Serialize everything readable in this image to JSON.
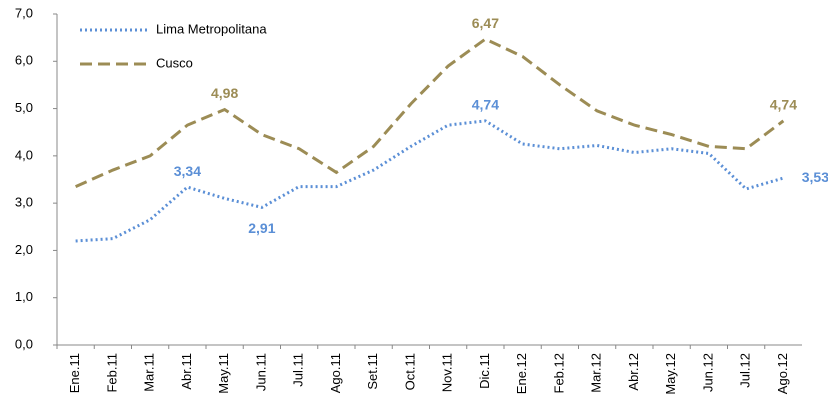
{
  "chart_data": {
    "type": "line",
    "categories": [
      "Ene.11",
      "Feb.11",
      "Mar.11",
      "Abr.11",
      "May.11",
      "Jun.11",
      "Jul.11",
      "Ago.11",
      "Set.11",
      "Oct.11",
      "Nov.11",
      "Dic.11",
      "Ene.12",
      "Feb.12",
      "Mar.12",
      "Abr.12",
      "May.12",
      "Jun.12",
      "Jul.12",
      "Ago.12"
    ],
    "series": [
      {
        "name": "Lima Metropolitana",
        "color": "#5b8fd6",
        "dash": "dotted",
        "values": [
          2.2,
          2.25,
          2.65,
          3.34,
          3.1,
          2.91,
          3.35,
          3.35,
          3.7,
          4.2,
          4.65,
          4.74,
          4.25,
          4.15,
          4.22,
          4.07,
          4.15,
          4.05,
          3.3,
          3.53
        ],
        "value_labels": [
          null,
          null,
          null,
          "3,34",
          null,
          "2,91",
          null,
          null,
          null,
          null,
          null,
          "4,74",
          null,
          null,
          null,
          null,
          null,
          null,
          null,
          "3,53"
        ]
      },
      {
        "name": "Cusco",
        "color": "#9c8c55",
        "dash": "dashed",
        "values": [
          3.35,
          3.7,
          4.0,
          4.65,
          4.98,
          4.45,
          4.15,
          3.65,
          4.2,
          5.1,
          5.9,
          6.47,
          6.1,
          5.5,
          4.95,
          4.65,
          4.45,
          4.2,
          4.15,
          4.74
        ],
        "value_labels": [
          null,
          null,
          null,
          null,
          "4,98",
          null,
          null,
          null,
          null,
          null,
          null,
          "6,47",
          null,
          null,
          null,
          null,
          null,
          null,
          null,
          "4,74"
        ]
      }
    ],
    "ylim": [
      0,
      7
    ],
    "yticks": [
      {
        "value": 0,
        "label": "0,0"
      },
      {
        "value": 1,
        "label": "1,0"
      },
      {
        "value": 2,
        "label": "2,0"
      },
      {
        "value": 3,
        "label": "3,0"
      },
      {
        "value": 4,
        "label": "4,0"
      },
      {
        "value": 5,
        "label": "5,0"
      },
      {
        "value": 6,
        "label": "6,0"
      },
      {
        "value": 7,
        "label": "7,0"
      }
    ],
    "grid": false,
    "legend": "top-left"
  }
}
